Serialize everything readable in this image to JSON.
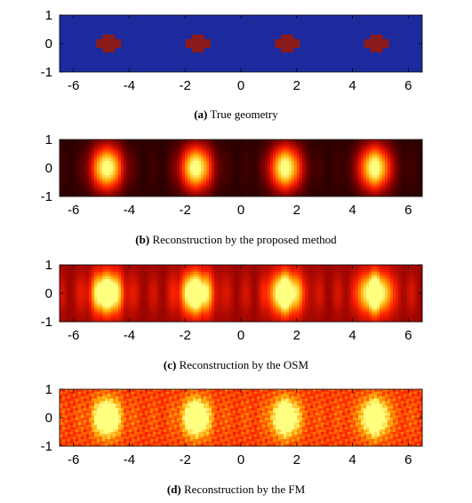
{
  "panels": [
    {
      "id": "a",
      "kind": "geometry",
      "caption_label": "(a)",
      "caption_text": " True geometry"
    },
    {
      "id": "b",
      "kind": "reconstruction",
      "caption_label": "(b)",
      "caption_text": " Reconstruction by the proposed method",
      "blob_sharpness": 1.6,
      "background_level": 0.08,
      "ripple": 0.12
    },
    {
      "id": "c",
      "kind": "reconstruction",
      "caption_label": "(c)",
      "caption_text": " Reconstruction by the OSM",
      "blob_sharpness": 1.3,
      "background_level": 0.28,
      "ripple": 0.45
    },
    {
      "id": "d",
      "kind": "reconstruction",
      "caption_label": "(d)",
      "caption_text": " Reconstruction by the FM",
      "blob_sharpness": 0.9,
      "background_level": 0.55,
      "ripple": 0.25
    }
  ],
  "chart_data": {
    "type": "heatmap",
    "xlim": [
      -6.5,
      6.5
    ],
    "ylim": [
      -1,
      1
    ],
    "x_ticks": [
      "-6",
      "-4",
      "-2",
      "0",
      "2",
      "4",
      "6"
    ],
    "y_ticks": [
      "1",
      "0",
      "-1"
    ],
    "scatterer_centers_x": [
      -4.8,
      -1.6,
      1.6,
      4.8
    ],
    "scatterer_center_y": 0,
    "colors": {
      "geometry_background": "#1c2a9e",
      "geometry_scatterer": "#8b1a1a",
      "colormap": [
        "#000000",
        "#8b0000",
        "#ff2000",
        "#ffa000",
        "#ffff80"
      ]
    }
  }
}
